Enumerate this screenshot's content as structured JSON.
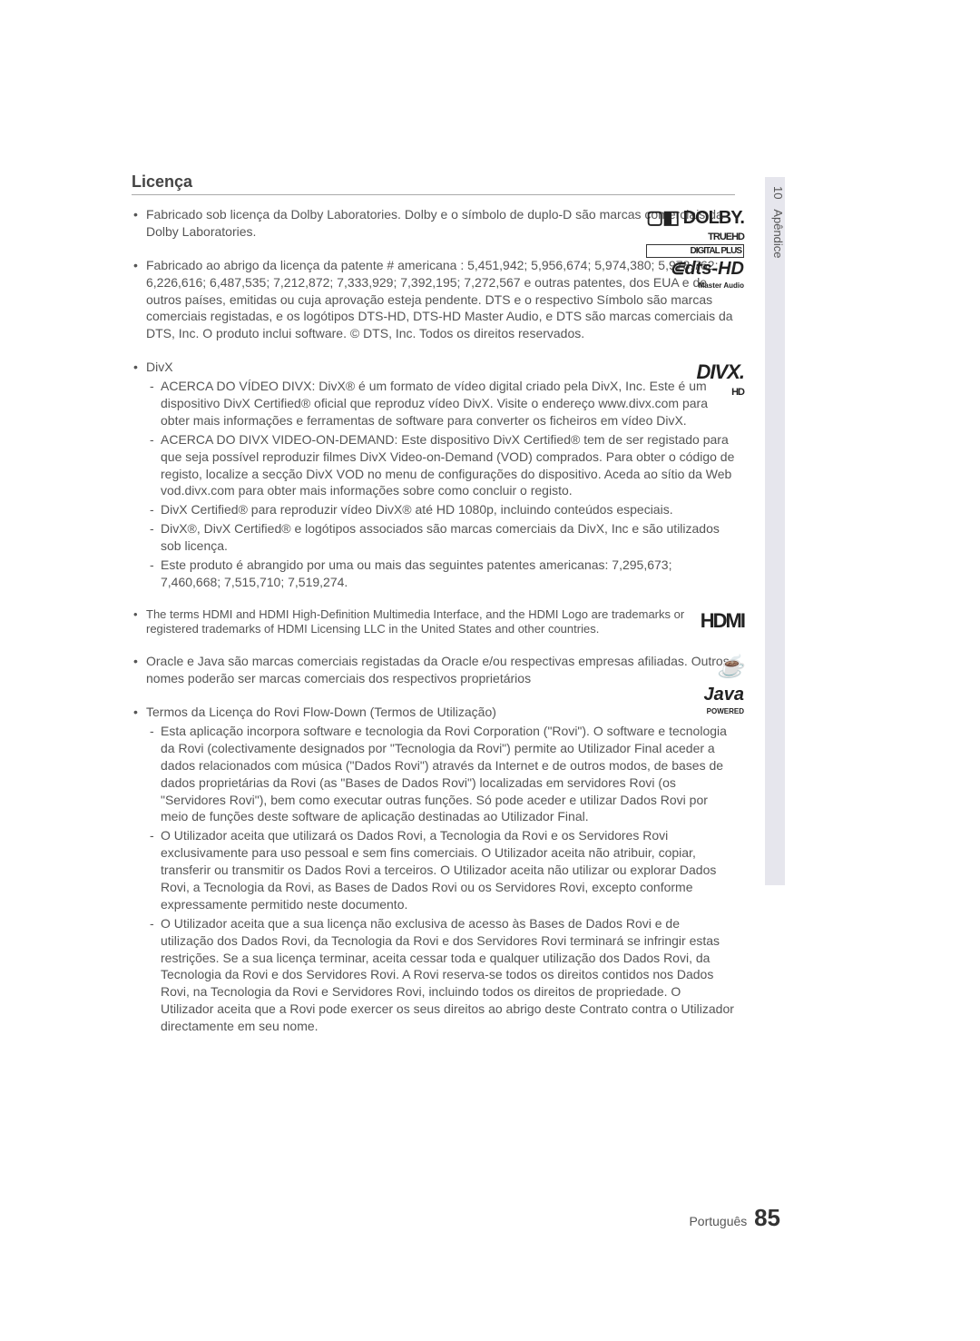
{
  "sideTab": {
    "number": "10",
    "label": "Apêndice"
  },
  "heading": "Licença",
  "items": [
    {
      "text": "Fabricado sob licença da Dolby Laboratories. Dolby e o símbolo de duplo-D são marcas comerciais da Dolby Laboratories.",
      "logo": {
        "kind": "dolby",
        "main": "▢◧ DOLBY.",
        "s1": "TRUEHD",
        "s2": "DIGITAL PLUS"
      }
    },
    {
      "text": "Fabricado ao abrigo da licença da patente # americana : 5,451,942; 5,956,674; 5,974,380; 5,978,762; 6,226,616; 6,487,535; 7,212,872; 7,333,929; 7,392,195; 7,272,567 e outras patentes, dos EUA e de outros países, emitidas ou cuja aprovação esteja pendente. DTS e o respectivo Símbolo são marcas comerciais registadas, e os logótipos DTS-HD, DTS-HD Master Audio, e DTS são marcas comerciais da DTS, Inc. O produto inclui software. © DTS, Inc. Todos os direitos reservados.",
      "logo": {
        "kind": "dts",
        "main": "⋐dts-HD",
        "s1": "Master Audio"
      }
    },
    {
      "text": "DivX",
      "logo": {
        "kind": "divx",
        "main": "DIVX.",
        "s1": "HD"
      },
      "subs": [
        "ACERCA DO VÍDEO DIVX: DivX® é um formato de vídeo digital criado pela DivX, Inc. Este é um dispositivo DivX Certified® oficial que reproduz vídeo DivX. Visite o endereço www.divx.com para obter mais informações e ferramentas de software para converter os ficheiros em vídeo DivX.",
        "ACERCA DO DIVX VIDEO-ON-DEMAND: Este dispositivo DivX Certified® tem de ser registado para que seja possível reproduzir filmes DivX Video-on-Demand (VOD) comprados. Para obter o código de registo, localize a secção DivX VOD no menu de configurações do dispositivo. Aceda ao sítio da Web vod.divx.com para obter mais informações sobre como concluir o registo.",
        "DivX Certified® para reproduzir vídeo DivX® até HD 1080p, incluindo conteúdos especiais.",
        "DivX®, DivX Certified® e logótipos associados são marcas comerciais da DivX, Inc e são utilizados sob licença.",
        "Este produto é abrangido por uma ou mais das seguintes patentes americanas: 7,295,673; 7,460,668; 7,515,710; 7,519,274."
      ]
    },
    {
      "text": "The terms HDMI and HDMI High-Definition Multimedia Interface, and the HDMI Logo are trademarks or registered trademarks of HDMI Licensing LLC in the United States and other countries.",
      "condensed": true,
      "logo": {
        "kind": "hdmi",
        "main": "HDMI"
      }
    },
    {
      "text": "Oracle e Java são marcas comerciais registadas da Oracle e/ou respectivas empresas afiliadas. Outros nomes poderão ser marcas comerciais dos respectivos proprietários",
      "logo": {
        "kind": "java",
        "cup": "☕",
        "main": "Java",
        "s1": "POWERED"
      }
    },
    {
      "text": "Termos da Licença do Rovi Flow-Down (Termos de Utilização)",
      "subs": [
        "Esta aplicação incorpora software e tecnologia da Rovi Corporation (\"Rovi\"). O software e tecnologia da Rovi (colectivamente designados por \"Tecnologia da Rovi\") permite ao Utilizador Final aceder a dados relacionados com música (\"Dados Rovi\") através da Internet e de outros modos, de bases de dados proprietárias da Rovi (as \"Bases de Dados Rovi\") localizadas em servidores Rovi (os \"Servidores Rovi\"), bem como executar outras funções. Só pode aceder e utilizar Dados Rovi por meio de funções deste software de aplicação destinadas ao Utilizador Final.",
        "O Utilizador aceita que utilizará os Dados Rovi, a Tecnologia da Rovi e os Servidores Rovi exclusivamente para uso pessoal e sem fins comerciais. O Utilizador aceita não atribuir, copiar, transferir ou transmitir os Dados Rovi a terceiros. O Utilizador aceita não utilizar ou explorar Dados Rovi, a Tecnologia da Rovi, as Bases de Dados Rovi ou os Servidores Rovi, excepto conforme expressamente permitido neste documento.",
        "O Utilizador aceita que a sua licença não exclusiva de acesso às Bases de Dados Rovi e de utilização dos Dados Rovi, da Tecnologia da Rovi e dos Servidores Rovi terminará se infringir estas restrições. Se a sua licença terminar, aceita cessar toda e qualquer utilização dos Dados Rovi, da Tecnologia da Rovi e dos Servidores Rovi. A Rovi reserva-se todos os direitos contidos nos Dados Rovi, na Tecnologia da Rovi e Servidores Rovi, incluindo todos os direitos de propriedade. O Utilizador aceita que a Rovi pode exercer os seus direitos ao abrigo deste Contrato contra o Utilizador directamente em seu nome."
      ]
    }
  ],
  "footer": {
    "lang": "Português",
    "page": "85"
  }
}
